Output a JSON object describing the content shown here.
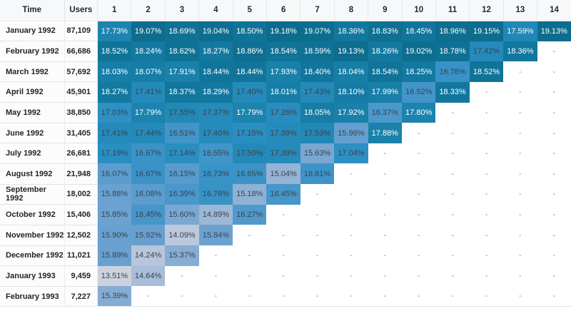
{
  "chart_data": {
    "type": "heatmap",
    "description": "Cohort retention table: rows are monthly user cohorts, columns are periods 1-14, cell values are retention percentages",
    "columns": [
      "Time",
      "Users",
      "1",
      "2",
      "3",
      "4",
      "5",
      "6",
      "7",
      "8",
      "9",
      "10",
      "11",
      "12",
      "13",
      "14"
    ],
    "empty_marker": "-",
    "value_suffix": "%",
    "colors": {
      "white_text_min": 17.56,
      "white_text_color": "#ffffff",
      "dark_text_color": "#3a434d",
      "empty_text_color": "#8f9499",
      "header_bg": "#f7f8f9",
      "border": "#dfe3e7",
      "scale": [
        [
          13.4,
          "#ced4dd"
        ],
        [
          14.3,
          "#b7c4da"
        ],
        [
          14.9,
          "#9db7d6"
        ],
        [
          15.6,
          "#7ba8d2"
        ],
        [
          16.1,
          "#5b9cce"
        ],
        [
          16.6,
          "#3d94c8"
        ],
        [
          17.1,
          "#2b8fc2"
        ],
        [
          17.5,
          "#2389b8"
        ],
        [
          17.8,
          "#1b83ad"
        ],
        [
          18.2,
          "#147aa2"
        ],
        [
          18.6,
          "#0f7295"
        ],
        [
          19.2,
          "#0c6c8d"
        ]
      ]
    },
    "rows": [
      {
        "time": "January 1992",
        "users": "87,109",
        "values": [
          17.73,
          19.07,
          18.69,
          19.04,
          18.5,
          19.18,
          19.07,
          18.36,
          18.83,
          18.45,
          18.96,
          19.15,
          17.59,
          19.13
        ]
      },
      {
        "time": "February 1992",
        "users": "66,686",
        "values": [
          18.52,
          18.24,
          18.62,
          18.27,
          18.86,
          18.54,
          18.59,
          19.13,
          18.26,
          19.02,
          18.78,
          17.42,
          18.36,
          null
        ]
      },
      {
        "time": "March 1992",
        "users": "57,692",
        "values": [
          18.03,
          18.07,
          17.91,
          18.44,
          18.44,
          17.93,
          18.4,
          18.04,
          18.54,
          18.25,
          16.78,
          18.52,
          null,
          null
        ]
      },
      {
        "time": "April 1992",
        "users": "45,901",
        "values": [
          18.27,
          17.41,
          18.37,
          18.29,
          17.4,
          18.01,
          17.43,
          18.1,
          17.99,
          16.52,
          18.33,
          null,
          null,
          null
        ]
      },
      {
        "time": "May 1992",
        "users": "38,850",
        "values": [
          17.03,
          17.79,
          17.55,
          17.37,
          17.79,
          17.26,
          18.05,
          17.92,
          16.37,
          17.8,
          null,
          null,
          null,
          null
        ]
      },
      {
        "time": "June 1992",
        "users": "31,405",
        "values": [
          17.41,
          17.44,
          16.51,
          17.4,
          17.15,
          17.39,
          17.53,
          15.96,
          17.88,
          null,
          null,
          null,
          null,
          null
        ]
      },
      {
        "time": "July 1992",
        "users": "26,681",
        "values": [
          17.19,
          16.67,
          17.14,
          16.55,
          17.5,
          17.39,
          15.63,
          17.04,
          null,
          null,
          null,
          null,
          null,
          null
        ]
      },
      {
        "time": "August 1992",
        "users": "21,948",
        "values": [
          16.07,
          16.67,
          16.15,
          16.73,
          16.65,
          15.04,
          16.61,
          null,
          null,
          null,
          null,
          null,
          null,
          null
        ]
      },
      {
        "time": "September 1992",
        "users": "18,002",
        "values": [
          15.88,
          16.08,
          16.39,
          16.76,
          15.18,
          16.45,
          null,
          null,
          null,
          null,
          null,
          null,
          null,
          null
        ]
      },
      {
        "time": "October 1992",
        "users": "15,406",
        "values": [
          15.85,
          16.45,
          15.6,
          14.89,
          16.27,
          null,
          null,
          null,
          null,
          null,
          null,
          null,
          null,
          null
        ]
      },
      {
        "time": "November 1992",
        "users": "12,502",
        "values": [
          15.9,
          15.92,
          14.09,
          15.84,
          null,
          null,
          null,
          null,
          null,
          null,
          null,
          null,
          null,
          null
        ]
      },
      {
        "time": "December 1992",
        "users": "11,021",
        "values": [
          15.89,
          14.24,
          15.37,
          null,
          null,
          null,
          null,
          null,
          null,
          null,
          null,
          null,
          null,
          null
        ]
      },
      {
        "time": "January 1993",
        "users": "9,459",
        "values": [
          13.51,
          14.64,
          null,
          null,
          null,
          null,
          null,
          null,
          null,
          null,
          null,
          null,
          null,
          null
        ]
      },
      {
        "time": "February 1993",
        "users": "7,227",
        "values": [
          15.39,
          null,
          null,
          null,
          null,
          null,
          null,
          null,
          null,
          null,
          null,
          null,
          null,
          null
        ]
      }
    ]
  }
}
